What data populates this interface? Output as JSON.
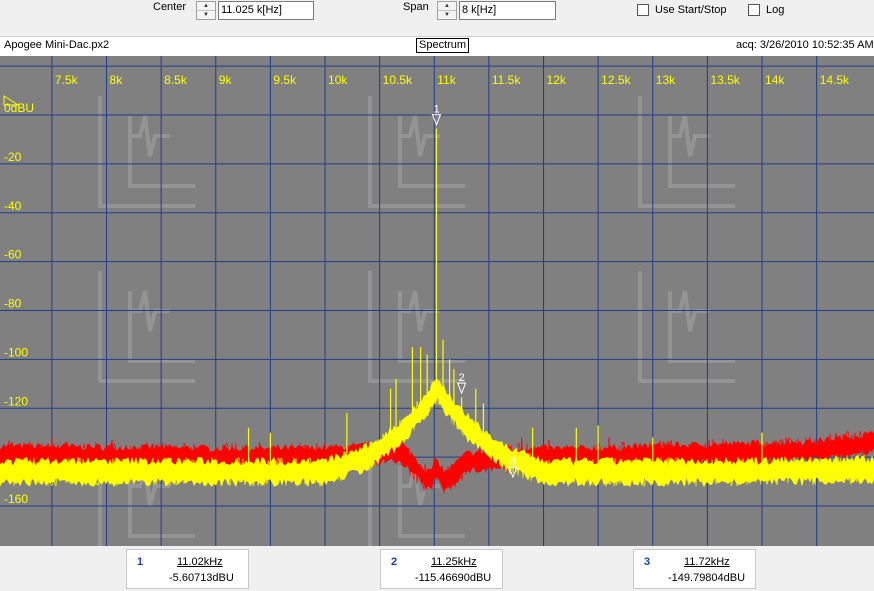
{
  "toolbar": {
    "center_label": "Center",
    "center_value": "11.025 k[Hz]",
    "span_label": "Span",
    "span_value": "8 k[Hz]",
    "use_start_stop_label": "Use Start/Stop",
    "log_label": "Log"
  },
  "info": {
    "file_name": "Apogee Mini-Dac.px2",
    "view_label": "Spectrum",
    "acq_text": "acq: 3/26/2010 10:52:35 AM"
  },
  "chart_data": {
    "type": "line",
    "xlim": [
      7025,
      15025
    ],
    "ylim": [
      -165,
      3
    ],
    "x_ticks": [
      7500,
      8000,
      8500,
      9000,
      9500,
      10000,
      10500,
      11000,
      11500,
      12000,
      12500,
      13000,
      13500,
      14000,
      14500
    ],
    "x_tick_labels": [
      "7.5k",
      "8k",
      "8.5k",
      "9k",
      "9.5k",
      "10k",
      "10.5k",
      "11k",
      "11.5k",
      "12k",
      "12.5k",
      "13k",
      "13.5k",
      "14k",
      "14.5k"
    ],
    "y_ticks": [
      0,
      -20,
      -40,
      -60,
      -80,
      -100,
      -120,
      -140,
      -160
    ],
    "y_tick_labels": [
      "0dBU",
      "-20",
      "-40",
      "-60",
      "-80",
      "-100",
      "-120",
      "",
      "-160"
    ],
    "grid": true,
    "series": [
      {
        "color": "#ff0000",
        "noise_floor": [
          [
            7025,
            -139
          ],
          [
            9000,
            -140
          ],
          [
            10000,
            -140
          ],
          [
            10700,
            -138
          ],
          [
            10950,
            -150
          ],
          [
            11025,
            -145
          ],
          [
            11100,
            -150
          ],
          [
            11300,
            -142
          ],
          [
            11800,
            -140
          ],
          [
            12500,
            -140
          ],
          [
            13000,
            -139
          ],
          [
            14000,
            -138
          ],
          [
            14500,
            -137
          ],
          [
            15025,
            -134
          ]
        ],
        "spurs": [
          [
            7500,
            -132
          ],
          [
            8050,
            -133
          ],
          [
            9400,
            -134
          ],
          [
            10260,
            -134
          ],
          [
            11800,
            -132
          ],
          [
            12050,
            -133
          ],
          [
            12600,
            -132
          ],
          [
            13150,
            -134
          ]
        ]
      },
      {
        "color": "#ffff00",
        "noise_floor": [
          [
            7025,
            -146
          ],
          [
            9000,
            -146
          ],
          [
            10000,
            -146
          ],
          [
            10400,
            -140
          ],
          [
            10700,
            -130
          ],
          [
            10900,
            -120
          ],
          [
            11025,
            -112
          ],
          [
            11150,
            -120
          ],
          [
            11350,
            -130
          ],
          [
            11650,
            -140
          ],
          [
            12000,
            -146
          ],
          [
            13000,
            -146
          ],
          [
            14000,
            -146
          ],
          [
            15025,
            -145
          ]
        ],
        "spurs": [
          [
            11020,
            -5.6
          ],
          [
            10800,
            -95
          ],
          [
            10875,
            -95
          ],
          [
            10935,
            -98
          ],
          [
            11080,
            -92
          ],
          [
            11140,
            -100
          ],
          [
            11180,
            -104
          ],
          [
            11250,
            -115.5
          ],
          [
            10650,
            -108
          ],
          [
            10600,
            -112
          ],
          [
            11380,
            -112
          ],
          [
            11450,
            -118
          ],
          [
            9300,
            -128
          ],
          [
            9500,
            -130
          ],
          [
            10200,
            -122
          ],
          [
            11900,
            -128
          ],
          [
            12300,
            -128
          ],
          [
            12500,
            -127
          ],
          [
            13000,
            -132
          ],
          [
            14000,
            -130
          ]
        ]
      }
    ],
    "markers": [
      {
        "id": "1",
        "freq": 11020,
        "level": -5.60713
      },
      {
        "id": "2",
        "freq": 11250,
        "level": -115.4669
      },
      {
        "id": "3",
        "freq": 11720,
        "level": -149.79804
      }
    ]
  },
  "marker_readouts": [
    {
      "id": "1",
      "freq_label": "11.02kHz",
      "level_label": "-5.60713dBU"
    },
    {
      "id": "2",
      "freq_label": "11.25kHz",
      "level_label": "-115.46690dBU"
    },
    {
      "id": "3",
      "freq_label": "11.72kHz",
      "level_label": "-149.79804dBU"
    }
  ]
}
